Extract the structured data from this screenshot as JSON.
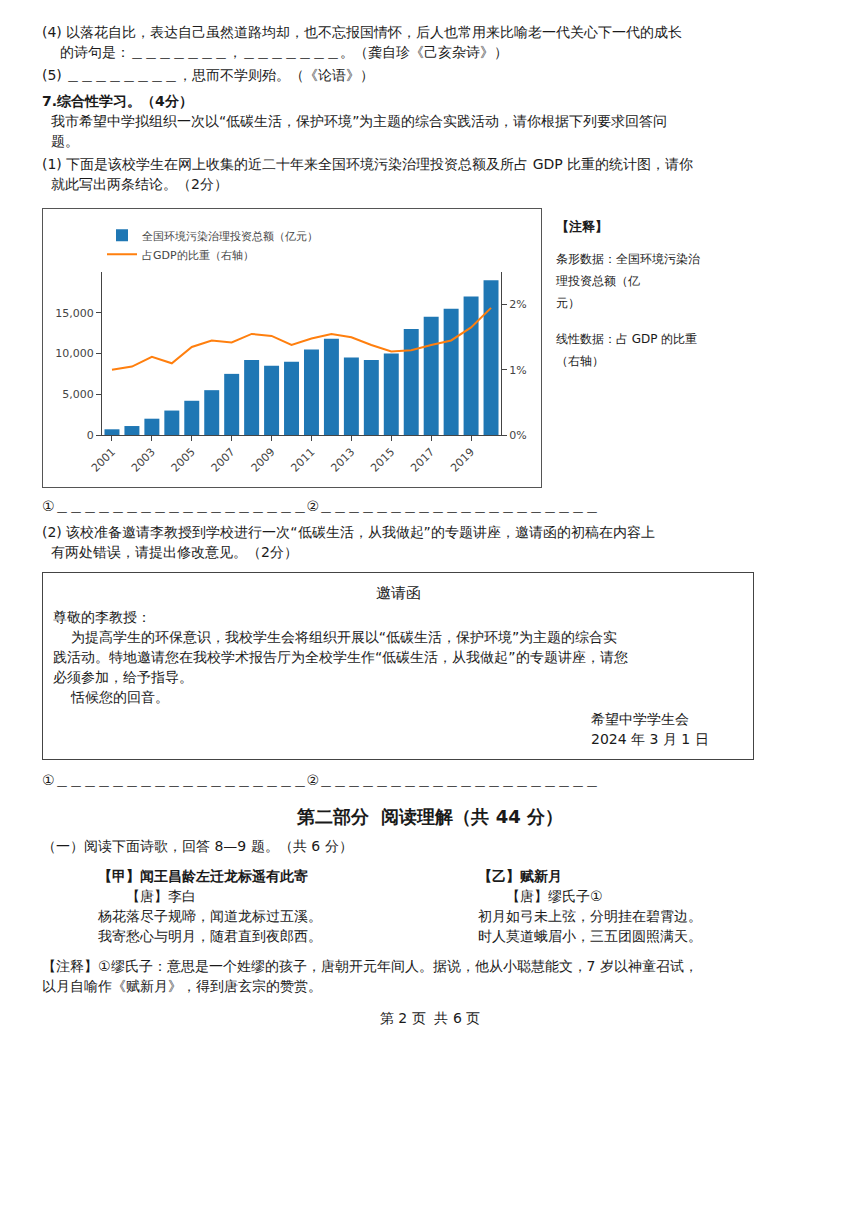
{
  "chart_data": {
    "type": "bar",
    "categories": [
      "2001",
      null,
      "2003",
      null,
      "2005",
      null,
      "2007",
      null,
      "2009",
      null,
      "2011",
      null,
      "2013",
      null,
      "2015",
      null,
      "2017",
      null,
      "2019",
      null
    ],
    "series": [
      {
        "name": "全国环境污染治理投资总额（亿元）",
        "type": "bar",
        "values": [
          700,
          1100,
          2000,
          3000,
          4200,
          5500,
          7500,
          9200,
          8500,
          9000,
          10500,
          11800,
          9500,
          9200,
          10000,
          13000,
          14500,
          15500,
          17000,
          19000
        ]
      },
      {
        "name": "占GDP的比重（右轴）",
        "type": "line",
        "axis": "y2",
        "values": [
          1.0,
          1.05,
          1.2,
          1.1,
          1.35,
          1.45,
          1.42,
          1.55,
          1.52,
          1.38,
          1.48,
          1.55,
          1.5,
          1.38,
          1.28,
          1.3,
          1.38,
          1.45,
          1.65,
          1.95
        ]
      }
    ],
    "ylim": [
      0,
      20000
    ],
    "yticks": [
      0,
      {
        "value": 5000,
        "label": "5,000"
      },
      {
        "value": 10000,
        "label": "10,000"
      },
      {
        "value": 15000,
        "label": "15,000"
      }
    ],
    "y2lim": [
      0,
      2.5
    ],
    "y2ticks": [
      {
        "value": 0,
        "label": "0%"
      },
      {
        "value": 1.0,
        "label": "1%"
      },
      {
        "value": 2.0,
        "label": "2%"
      }
    ],
    "grid": false,
    "legend": "upper left",
    "annotations": [
      "【注释】",
      "条形数据：全国环境污染治",
      "理投资总额（亿",
      "元）",
      "线性数据：占 GDP 的比重",
      "（右轴）"
    ]
  },
  "texts": {
    "section4_text": "(4) 以落花自比，表达自己虽然道路均却，也不忘报国情怀，后人也常用来比喻老一代关心下一代的成长",
    "section4_line2": "    的诗句是：＿＿＿＿＿＿＿，＿＿＿＿＿＿＿。（龚自珍《己亥杂诗》）",
    "section5_text": "(5) ＿＿＿＿＿＿＿＿，思而不学则殆。（《论语》）",
    "section7_title": "7.综合性学习。（4分）",
    "section7_body1": "  我市希望中学拟组织一次以“低碳生活，保护环境”为主题的综合实践活动，请你根据下列要求回答问",
    "section7_body2": "  题。",
    "section7_q1_1": "(1) 下面是该校学生在网上收集的近二十年来全国环境污染治理投资总额及所占 GDP 比重的统计图，请你",
    "section7_q1_2": "  就此写出两条结论。（2分）",
    "conclusion1": "①＿＿＿＿＿＿＿＿＿＿＿＿＿＿＿＿＿＿②＿＿＿＿＿＿＿＿＿＿＿＿＿＿＿＿＿＿＿＿",
    "section7_q2_1": "(2) 该校准备邀请李教授到学校进行一次“低碳生活，从我做起”的专题讲座，邀请函的初稿在内容上",
    "section7_q2_2": "  有两处错误，请提出修改意见。（2分）",
    "invitation_title": "邀请函",
    "invitation_addr": "尊敬的李教授：",
    "invitation_body1": "    为提高学生的环保意识，我校学生会将组织开展以“低碳生活，保护环境”为主题的综合实",
    "invitation_body2": "践活动。特地邀请您在我校学术报告厅为全校学生作“低碳生活，从我做起”的专题讲座，请您",
    "invitation_body3": "必须参加，给予指导。",
    "invitation_close": "    恬候您的回音。",
    "invitation_sign1": "希望中学学生会",
    "invitation_sign2": "2024 年 3 月 1 日",
    "conclusion2": "①＿＿＿＿＿＿＿＿＿＿＿＿＿＿＿＿＿＿②＿＿＿＿＿＿＿＿＿＿＿＿＿＿＿＿＿＿＿＿",
    "part2_title": "第二部分  阅读理解（共 44 分）",
    "part2_sub": "（一）阅读下面诗歌，回答 8—9 题。（共 6 分）",
    "poem_jia_title": "【甲】闻王昌龄左迁龙标遥有此寄",
    "poem_jia_author": "【唐】李白",
    "poem_jia_l1": "杨花落尽子规啼，闻道龙标过五溪。",
    "poem_jia_l2": "我寄愁心与明月，随君直到夜郎西。",
    "poem_yi_title": "【乙】赋新月",
    "poem_yi_author": "【唐】缪氏子①",
    "poem_yi_l1": "初月如弓未上弦，分明挂在碧霄边。",
    "poem_yi_l2": "时人莫道蛾眉小，三五团圆照满天。",
    "footnote1": "【注释】①缪氏子：意思是一个姓缪的孩子，唐朝开元年间人。据说，他从小聪慧能文，7 岁以神童召试，",
    "footnote2": "以月自喻作《赋新月》，得到唐玄宗的赞赏。",
    "page_num": "第 2 页  共 6 页"
  }
}
